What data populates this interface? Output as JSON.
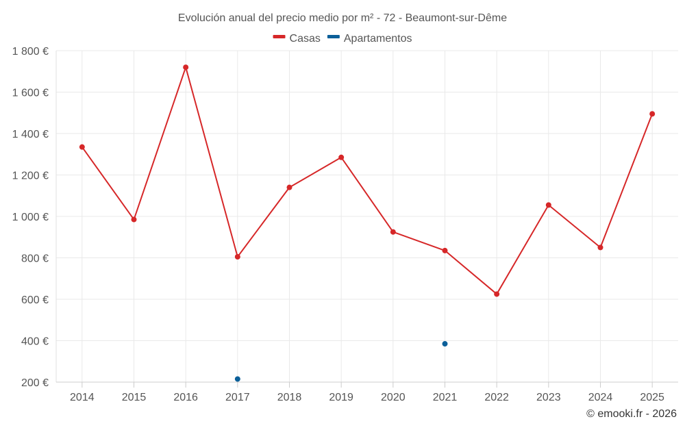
{
  "chart_data": {
    "type": "line",
    "title": "Evolución anual del precio medio por m² - 72 - Beaumont-sur-Dême",
    "categories": [
      "2014",
      "2015",
      "2016",
      "2017",
      "2018",
      "2019",
      "2020",
      "2021",
      "2022",
      "2023",
      "2024",
      "2025"
    ],
    "y_ticks": [
      "200 €",
      "400 €",
      "600 €",
      "800 €",
      "1 000 €",
      "1 200 €",
      "1 400 €",
      "1 600 €",
      "1 800 €"
    ],
    "y_tick_values": [
      200,
      400,
      600,
      800,
      1000,
      1200,
      1400,
      1600,
      1800
    ],
    "ylim": [
      200,
      1800
    ],
    "grid": true,
    "legend_position": "top-center",
    "series": [
      {
        "name": "Casas",
        "color": "#d62728",
        "values": [
          1335,
          985,
          1720,
          805,
          1140,
          1285,
          925,
          835,
          625,
          1055,
          850,
          1495
        ]
      },
      {
        "name": "Apartamentos",
        "color": "#0b5f99",
        "values": [
          null,
          null,
          null,
          215,
          null,
          null,
          null,
          385,
          null,
          null,
          null,
          null
        ]
      }
    ],
    "credit": "© emooki.fr - 2026"
  }
}
